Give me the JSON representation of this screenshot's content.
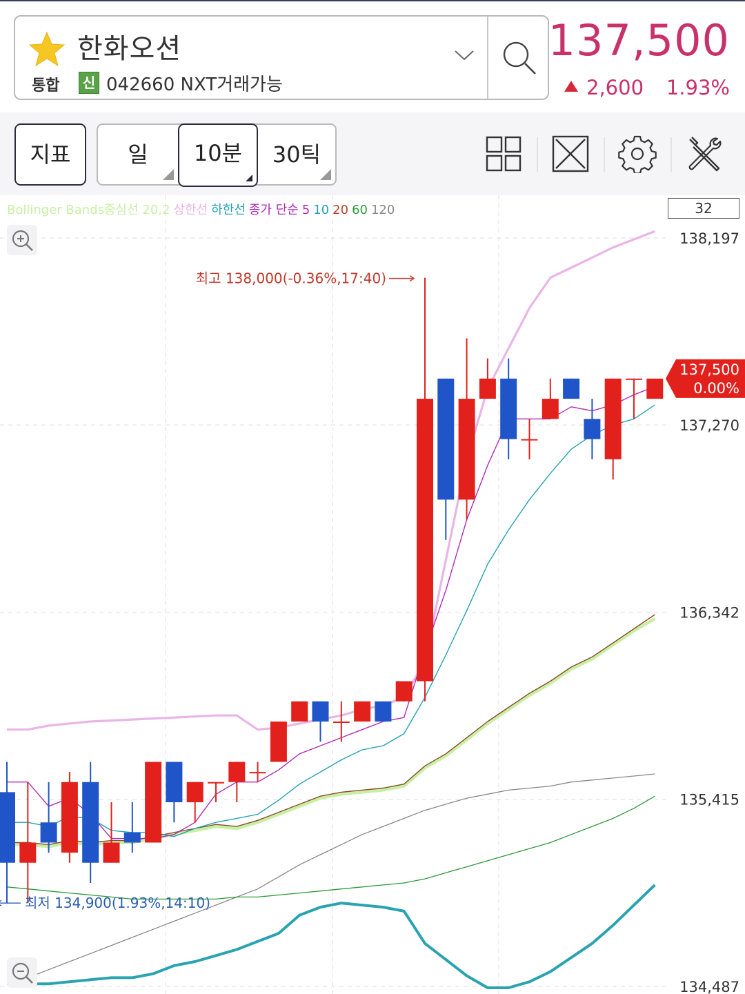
{
  "header": {
    "stock_name": "한화오션",
    "market": "통합",
    "credit_badge": "신",
    "code_line": "042660 NXT거래가능",
    "price": "137,500",
    "change": "2,600",
    "change_pct": "1.93%"
  },
  "toolbar": {
    "indicator_label": "지표",
    "periods": [
      "일",
      "10분",
      "30틱"
    ],
    "selected_period": "10분"
  },
  "icons": {
    "favorite": "star-icon",
    "dropdown": "chevron-down-icon",
    "search": "search-icon",
    "layout": "grid-icon",
    "fullscreen": "expand-icon",
    "settings": "gear-icon",
    "tools": "tools-icon",
    "zoom_in": "zoom-in-icon",
    "zoom_out": "zoom-out-icon"
  },
  "colors": {
    "rise": "#e3211c",
    "fall": "#1f55c8",
    "price_text": "#c8316a",
    "bb_upper": "#e9b5e6",
    "ma5": "#b02ab5",
    "ma10": "#23a1b3",
    "ma20": "#8a4a2a",
    "ma60": "#2a9a3a",
    "ma120": "#888888",
    "bb_mid": "#c8f0a4",
    "volume_line": "#2aa3b0"
  },
  "chart_data": {
    "type": "candlestick",
    "legend": [
      {
        "text": "Bollinger Bands중심선 20,2",
        "color": "#c8f0a4"
      },
      {
        "text": "상한선",
        "color": "#e9b5e6"
      },
      {
        "text": "하한선",
        "color": "#23a1b3"
      },
      {
        "text": "종가 단순",
        "color": "#b02ab5"
      },
      {
        "text": "5",
        "color": "#b02ab5"
      },
      {
        "text": "10",
        "color": "#23a1b3"
      },
      {
        "text": "20",
        "color": "#b5452a"
      },
      {
        "text": "60",
        "color": "#2a9a3a"
      },
      {
        "text": "120",
        "color": "#888888"
      }
    ],
    "visible_count": "32",
    "y_ticks": [
      "138,197",
      "137,270",
      "136,342",
      "135,415",
      "134,487"
    ],
    "y_tick_values": [
      138197,
      137270,
      136342,
      135415,
      134487
    ],
    "ylim": [
      134487,
      138197
    ],
    "last_price_label": "137,500",
    "last_change_label": "0.00%",
    "high_annotation": "최고 138,000(-0.36%,17:40)",
    "low_annotation": "최저 134,900(1.93%,14:10)",
    "candles": [
      {
        "o": 135450,
        "h": 135600,
        "l": 134900,
        "c": 135100
      },
      {
        "o": 135100,
        "h": 135500,
        "l": 134900,
        "c": 135200
      },
      {
        "o": 135300,
        "h": 135500,
        "l": 135150,
        "c": 135200
      },
      {
        "o": 135150,
        "h": 135550,
        "l": 135100,
        "c": 135500
      },
      {
        "o": 135500,
        "h": 135600,
        "l": 135000,
        "c": 135100
      },
      {
        "o": 135100,
        "h": 135400,
        "l": 135100,
        "c": 135200
      },
      {
        "o": 135250,
        "h": 135400,
        "l": 135150,
        "c": 135200
      },
      {
        "o": 135200,
        "h": 135600,
        "l": 135200,
        "c": 135600
      },
      {
        "o": 135600,
        "h": 135600,
        "l": 135300,
        "c": 135400
      },
      {
        "o": 135400,
        "h": 135500,
        "l": 135300,
        "c": 135500
      },
      {
        "o": 135500,
        "h": 135500,
        "l": 135400,
        "c": 135500
      },
      {
        "o": 135500,
        "h": 135600,
        "l": 135400,
        "c": 135600
      },
      {
        "o": 135550,
        "h": 135600,
        "l": 135500,
        "c": 135550
      },
      {
        "o": 135600,
        "h": 135800,
        "l": 135600,
        "c": 135800
      },
      {
        "o": 135800,
        "h": 135900,
        "l": 135800,
        "c": 135900
      },
      {
        "o": 135900,
        "h": 135900,
        "l": 135700,
        "c": 135800
      },
      {
        "o": 135800,
        "h": 135900,
        "l": 135700,
        "c": 135800
      },
      {
        "o": 135800,
        "h": 135900,
        "l": 135800,
        "c": 135900
      },
      {
        "o": 135900,
        "h": 135900,
        "l": 135800,
        "c": 135800
      },
      {
        "o": 135900,
        "h": 136000,
        "l": 135900,
        "c": 136000
      },
      {
        "o": 136000,
        "h": 138000,
        "l": 135900,
        "c": 137400
      },
      {
        "o": 137500,
        "h": 137500,
        "l": 136700,
        "c": 136900
      },
      {
        "o": 136900,
        "h": 137700,
        "l": 136800,
        "c": 137400
      },
      {
        "o": 137400,
        "h": 137600,
        "l": 137400,
        "c": 137500
      },
      {
        "o": 137500,
        "h": 137600,
        "l": 137100,
        "c": 137200
      },
      {
        "o": 137200,
        "h": 137300,
        "l": 137100,
        "c": 137200
      },
      {
        "o": 137300,
        "h": 137500,
        "l": 137300,
        "c": 137400
      },
      {
        "o": 137500,
        "h": 137500,
        "l": 137400,
        "c": 137400
      },
      {
        "o": 137300,
        "h": 137400,
        "l": 137100,
        "c": 137200
      },
      {
        "o": 137100,
        "h": 137500,
        "l": 137000,
        "c": 137500
      },
      {
        "o": 137500,
        "h": 137500,
        "l": 137300,
        "c": 137500
      },
      {
        "o": 137400,
        "h": 137500,
        "l": 137400,
        "c": 137500
      }
    ],
    "series": [
      {
        "key": "bb_upper",
        "values": [
          135760,
          135760,
          135780,
          135790,
          135800,
          135805,
          135810,
          135815,
          135820,
          135825,
          135830,
          135830,
          135760,
          135770,
          135790,
          135810,
          135830,
          135860,
          135880,
          135920,
          136100,
          136600,
          137100,
          137450,
          137650,
          137850,
          138000,
          138050,
          138100,
          138150,
          138190,
          138230
        ]
      },
      {
        "key": "ma5",
        "values": [
          135500,
          135500,
          135380,
          135420,
          135340,
          135220,
          135220,
          135220,
          135240,
          135300,
          135440,
          135500,
          135500,
          135560,
          135640,
          135680,
          135720,
          135760,
          135800,
          135820,
          136150,
          136450,
          136800,
          137070,
          137300,
          137300,
          137300,
          137360,
          137340,
          137370,
          137420,
          137460
        ]
      },
      {
        "key": "ma10",
        "values": [
          135300,
          135300,
          135280,
          135330,
          135320,
          135260,
          135250,
          135250,
          135230,
          135270,
          135300,
          135320,
          135340,
          135410,
          135490,
          135550,
          135610,
          135660,
          135680,
          135740,
          135920,
          136130,
          136350,
          136580,
          136750,
          136900,
          137030,
          137150,
          137220,
          137270,
          137300,
          137370
        ]
      },
      {
        "key": "ma20",
        "values": [
          135200,
          135200,
          135190,
          135210,
          135200,
          135210,
          135210,
          135230,
          135250,
          135270,
          135290,
          135280,
          135310,
          135350,
          135390,
          135430,
          135450,
          135460,
          135470,
          135490,
          135580,
          135640,
          135720,
          135800,
          135870,
          135940,
          136000,
          136070,
          136120,
          136190,
          136260,
          136330
        ]
      },
      {
        "key": "bb_mid",
        "values": [
          135190,
          135190,
          135180,
          135200,
          135190,
          135200,
          135200,
          135220,
          135240,
          135260,
          135280,
          135270,
          135300,
          135340,
          135380,
          135420,
          135440,
          135450,
          135460,
          135480,
          135570,
          135630,
          135710,
          135790,
          135860,
          135930,
          135990,
          136060,
          136110,
          136180,
          136250,
          136310
        ]
      },
      {
        "key": "ma60",
        "values": [
          134980,
          134970,
          134960,
          134950,
          134940,
          134930,
          134920,
          134920,
          134920,
          134920,
          134920,
          134930,
          134930,
          134940,
          134950,
          134960,
          134970,
          134980,
          134990,
          135000,
          135020,
          135050,
          135080,
          135110,
          135140,
          135170,
          135200,
          135240,
          135280,
          135320,
          135370,
          135430
        ]
      },
      {
        "key": "ma120",
        "values": [
          134500,
          134530,
          134570,
          134610,
          134650,
          134690,
          134730,
          134770,
          134810,
          134850,
          134890,
          134930,
          134970,
          135030,
          135090,
          135140,
          135190,
          135240,
          135280,
          135320,
          135360,
          135390,
          135420,
          135440,
          135460,
          135470,
          135480,
          135500,
          135510,
          135520,
          135530,
          135540
        ]
      },
      {
        "key": "volume_line",
        "values": [
          134500,
          134500,
          134500,
          134510,
          134520,
          134530,
          134530,
          134550,
          134590,
          134610,
          134640,
          134670,
          134710,
          134750,
          134840,
          134880,
          134900,
          134890,
          134880,
          134860,
          134700,
          134620,
          134540,
          134480,
          134480,
          134510,
          134560,
          134630,
          134700,
          134790,
          134890,
          134990
        ]
      }
    ]
  }
}
